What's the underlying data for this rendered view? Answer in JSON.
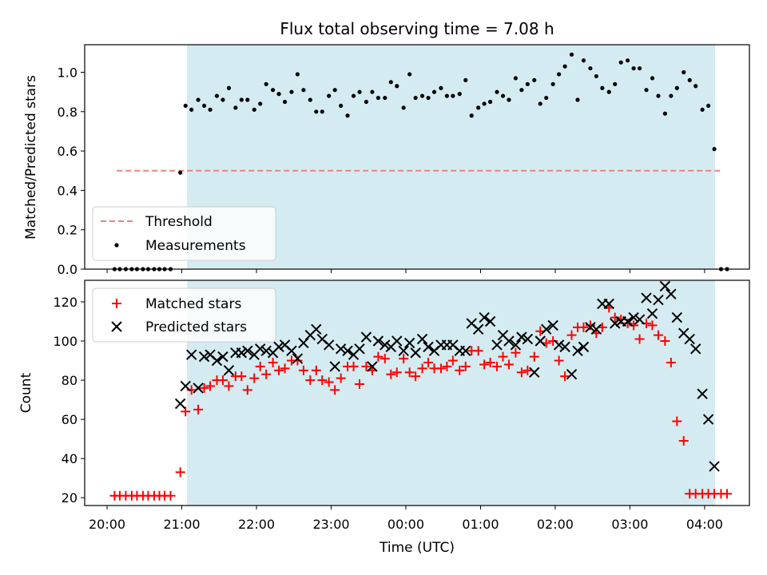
{
  "figure": {
    "title": "Flux total observing time = 7.08 h"
  },
  "chart_data": [
    {
      "type": "scatter",
      "panel": "top",
      "title": "Flux total observing time = 7.08 h",
      "xlabel": "",
      "ylabel": "Matched/Predicted stars",
      "xlim_hours": [
        19.7,
        28.6
      ],
      "ylim": [
        0.0,
        1.14
      ],
      "yticks": [
        0.0,
        0.2,
        0.4,
        0.6,
        0.8,
        1.0
      ],
      "shaded_region_hours": [
        21.07,
        28.14
      ],
      "shade_color": "#d4ebf1",
      "legend_location": "lower left",
      "threshold": {
        "name": "Threshold",
        "value": 0.5,
        "x_range_hours": [
          20.13,
          28.23
        ],
        "color": "#f08080"
      },
      "measurements": {
        "name": "Measurements",
        "color": "#000000",
        "x_hours": [
          20.1,
          20.17,
          20.25,
          20.33,
          20.4,
          20.48,
          20.55,
          20.63,
          20.7,
          20.77,
          20.85,
          20.98,
          21.05,
          21.13,
          21.22,
          21.3,
          21.38,
          21.47,
          21.55,
          21.63,
          21.72,
          21.8,
          21.88,
          21.97,
          22.05,
          22.13,
          22.22,
          22.3,
          22.38,
          22.47,
          22.55,
          22.63,
          22.72,
          22.8,
          22.88,
          22.97,
          23.05,
          23.13,
          23.22,
          23.3,
          23.38,
          23.47,
          23.55,
          23.63,
          23.72,
          23.8,
          23.88,
          23.97,
          24.05,
          24.13,
          24.22,
          24.3,
          24.38,
          24.47,
          24.55,
          24.63,
          24.72,
          24.8,
          24.88,
          24.97,
          25.05,
          25.13,
          25.22,
          25.3,
          25.38,
          25.47,
          25.55,
          25.63,
          25.72,
          25.8,
          25.88,
          25.97,
          26.05,
          26.13,
          26.22,
          26.3,
          26.38,
          26.47,
          26.55,
          26.63,
          26.72,
          26.8,
          26.88,
          26.97,
          27.05,
          27.13,
          27.22,
          27.3,
          27.38,
          27.47,
          27.55,
          27.63,
          27.72,
          27.8,
          27.88,
          27.97,
          28.05,
          28.13,
          28.22,
          28.3
        ],
        "y": [
          0.0,
          0.0,
          0.0,
          0.0,
          0.0,
          0.0,
          0.0,
          0.0,
          0.0,
          0.0,
          0.0,
          0.49,
          0.83,
          0.81,
          0.86,
          0.83,
          0.81,
          0.88,
          0.86,
          0.92,
          0.82,
          0.86,
          0.86,
          0.81,
          0.84,
          0.94,
          0.91,
          0.89,
          0.85,
          0.9,
          0.99,
          0.91,
          0.86,
          0.8,
          0.8,
          0.88,
          0.91,
          0.83,
          0.78,
          0.88,
          0.9,
          0.85,
          0.9,
          0.87,
          0.87,
          0.95,
          0.93,
          0.82,
          0.99,
          0.87,
          0.88,
          0.87,
          0.9,
          0.92,
          0.88,
          0.88,
          0.89,
          0.96,
          0.78,
          0.82,
          0.84,
          0.85,
          0.9,
          0.88,
          0.86,
          0.97,
          0.91,
          0.94,
          0.96,
          0.84,
          0.87,
          0.94,
          0.99,
          1.03,
          1.09,
          0.86,
          1.06,
          1.02,
          0.98,
          0.92,
          0.9,
          0.94,
          1.05,
          1.06,
          1.02,
          1.02,
          0.91,
          0.97,
          0.88,
          0.79,
          0.88,
          0.92,
          1.0,
          0.96,
          0.93,
          0.81,
          0.83,
          0.61,
          0.0,
          0.0
        ]
      }
    },
    {
      "type": "scatter",
      "panel": "bottom",
      "xlabel": "Time (UTC)",
      "ylabel": "Count",
      "xlim_hours": [
        19.7,
        28.6
      ],
      "ylim": [
        16,
        131
      ],
      "yticks": [
        20,
        40,
        60,
        80,
        100,
        120
      ],
      "xtick_hours": [
        20,
        21,
        22,
        23,
        24,
        25,
        26,
        27,
        28
      ],
      "xtick_labels": [
        "20:00",
        "21:00",
        "22:00",
        "23:00",
        "00:00",
        "01:00",
        "02:00",
        "03:00",
        "04:00"
      ],
      "shaded_region_hours": [
        21.07,
        28.14
      ],
      "shade_color": "#d4ebf1",
      "legend_location": "upper left",
      "series": [
        {
          "name": "Matched stars",
          "marker": "plus",
          "color": "#ff0000",
          "x_hours": [
            20.1,
            20.17,
            20.25,
            20.33,
            20.4,
            20.48,
            20.55,
            20.63,
            20.7,
            20.77,
            20.85,
            20.98,
            21.05,
            21.13,
            21.22,
            21.3,
            21.38,
            21.47,
            21.55,
            21.63,
            21.72,
            21.8,
            21.88,
            21.97,
            22.05,
            22.13,
            22.22,
            22.3,
            22.38,
            22.47,
            22.55,
            22.63,
            22.72,
            22.8,
            22.88,
            22.97,
            23.05,
            23.13,
            23.22,
            23.3,
            23.38,
            23.47,
            23.55,
            23.63,
            23.72,
            23.8,
            23.88,
            23.97,
            24.05,
            24.13,
            24.22,
            24.3,
            24.38,
            24.47,
            24.55,
            24.63,
            24.72,
            24.8,
            24.88,
            24.97,
            25.05,
            25.13,
            25.22,
            25.3,
            25.38,
            25.47,
            25.55,
            25.63,
            25.72,
            25.8,
            25.88,
            25.97,
            26.05,
            26.13,
            26.22,
            26.3,
            26.38,
            26.47,
            26.55,
            26.63,
            26.72,
            26.8,
            26.88,
            26.97,
            27.05,
            27.13,
            27.22,
            27.3,
            27.38,
            27.47,
            27.55,
            27.63,
            27.72,
            27.8,
            27.88,
            27.97,
            28.05,
            28.13,
            28.22,
            28.3
          ],
          "y": [
            21,
            21,
            21,
            21,
            21,
            21,
            21,
            21,
            21,
            21,
            21,
            33,
            64,
            75,
            65,
            76,
            77,
            80,
            80,
            77,
            82,
            82,
            75,
            81,
            87,
            83,
            89,
            85,
            86,
            90,
            90,
            85,
            80,
            85,
            80,
            79,
            75,
            81,
            87,
            87,
            78,
            87,
            85,
            92,
            91,
            83,
            84,
            91,
            84,
            82,
            86,
            89,
            86,
            86,
            87,
            90,
            85,
            87,
            95,
            95,
            88,
            89,
            87,
            92,
            88,
            94,
            84,
            85,
            92,
            105,
            99,
            100,
            90,
            82,
            103,
            107,
            107,
            108,
            104,
            107,
            117,
            112,
            111,
            109,
            108,
            101,
            109,
            108,
            103,
            100,
            89,
            59,
            49,
            22,
            22,
            22,
            22,
            22,
            22,
            22
          ]
        },
        {
          "name": "Predicted stars",
          "marker": "x",
          "color": "#000000",
          "x_hours": [
            20.98,
            21.05,
            21.13,
            21.22,
            21.3,
            21.38,
            21.47,
            21.55,
            21.63,
            21.72,
            21.8,
            21.88,
            21.97,
            22.05,
            22.13,
            22.22,
            22.3,
            22.38,
            22.47,
            22.55,
            22.63,
            22.72,
            22.8,
            22.88,
            22.97,
            23.05,
            23.13,
            23.22,
            23.3,
            23.38,
            23.47,
            23.55,
            23.63,
            23.72,
            23.8,
            23.88,
            23.97,
            24.05,
            24.13,
            24.22,
            24.3,
            24.38,
            24.47,
            24.55,
            24.63,
            24.72,
            24.8,
            24.88,
            24.97,
            25.05,
            25.13,
            25.22,
            25.3,
            25.38,
            25.47,
            25.55,
            25.63,
            25.72,
            25.8,
            25.88,
            25.97,
            26.05,
            26.13,
            26.22,
            26.3,
            26.38,
            26.47,
            26.55,
            26.63,
            26.72,
            26.8,
            26.88,
            26.97,
            27.05,
            27.13,
            27.22,
            27.3,
            27.38,
            27.47,
            27.55,
            27.63,
            27.72,
            27.8,
            27.88,
            27.97,
            28.05,
            28.13
          ],
          "y": [
            68,
            77,
            93,
            76,
            92,
            93,
            90,
            92,
            85,
            94,
            94,
            95,
            93,
            96,
            95,
            94,
            97,
            98,
            95,
            91,
            99,
            103,
            106,
            101,
            98,
            87,
            96,
            95,
            93,
            96,
            102,
            87,
            100,
            98,
            97,
            100,
            95,
            99,
            94,
            101,
            97,
            95,
            98,
            98,
            98,
            95,
            95,
            109,
            106,
            112,
            110,
            98,
            103,
            100,
            98,
            102,
            101,
            84,
            100,
            106,
            108,
            98,
            97,
            83,
            95,
            97,
            107,
            106,
            119,
            119,
            109,
            110,
            110,
            112,
            111,
            122,
            114,
            121,
            128,
            124,
            112,
            104,
            101,
            96,
            73,
            60,
            36
          ]
        }
      ]
    }
  ]
}
